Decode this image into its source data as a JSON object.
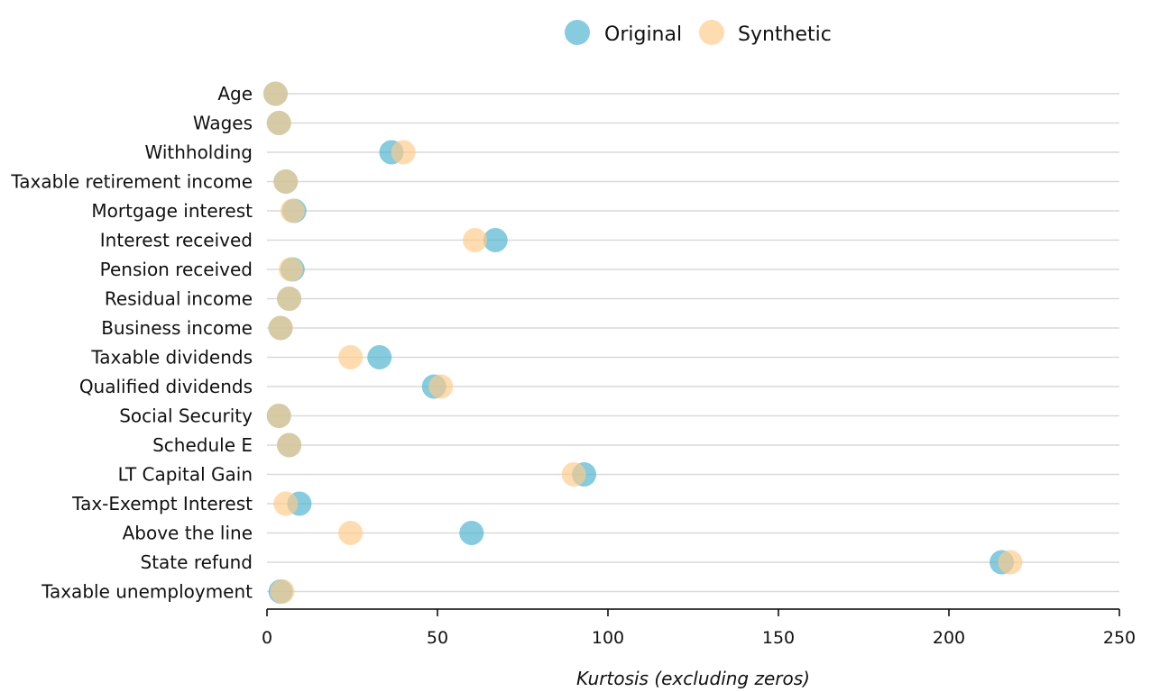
{
  "chart_data": {
    "type": "scatter",
    "categories": [
      "Age",
      "Wages",
      "Withholding",
      "Taxable retirement income",
      "Mortgage interest",
      "Interest received",
      "Pension received",
      "Residual income",
      "Business income",
      "Taxable dividends",
      "Qualified dividends",
      "Social Security",
      "Schedule E",
      "LT Capital Gain",
      "Tax-Exempt Interest",
      "Above the line",
      "State refund",
      "Taxable unemployment"
    ],
    "series": [
      {
        "name": "Original",
        "color": "#4eb3cf",
        "values": [
          2.5,
          3.5,
          36.5,
          5.5,
          8,
          67,
          7.5,
          6.5,
          4,
          33,
          49,
          3.5,
          6.5,
          93,
          9.5,
          60,
          215.5,
          4
        ]
      },
      {
        "name": "Synthetic",
        "color": "#fdcc8a",
        "values": [
          2.5,
          3.5,
          40,
          5.5,
          7.5,
          61,
          7,
          6.5,
          4,
          24.5,
          51,
          3.5,
          6.5,
          90,
          5.5,
          24.5,
          218,
          4.5
        ]
      }
    ],
    "xlabel": "Kurtosis (excluding zeros)",
    "ylabel": "",
    "xlim": [
      0,
      250
    ],
    "xticks": [
      "0",
      "50",
      "100",
      "150",
      "200",
      "250"
    ],
    "grid": "horizontal",
    "legend_position": "top-center"
  }
}
